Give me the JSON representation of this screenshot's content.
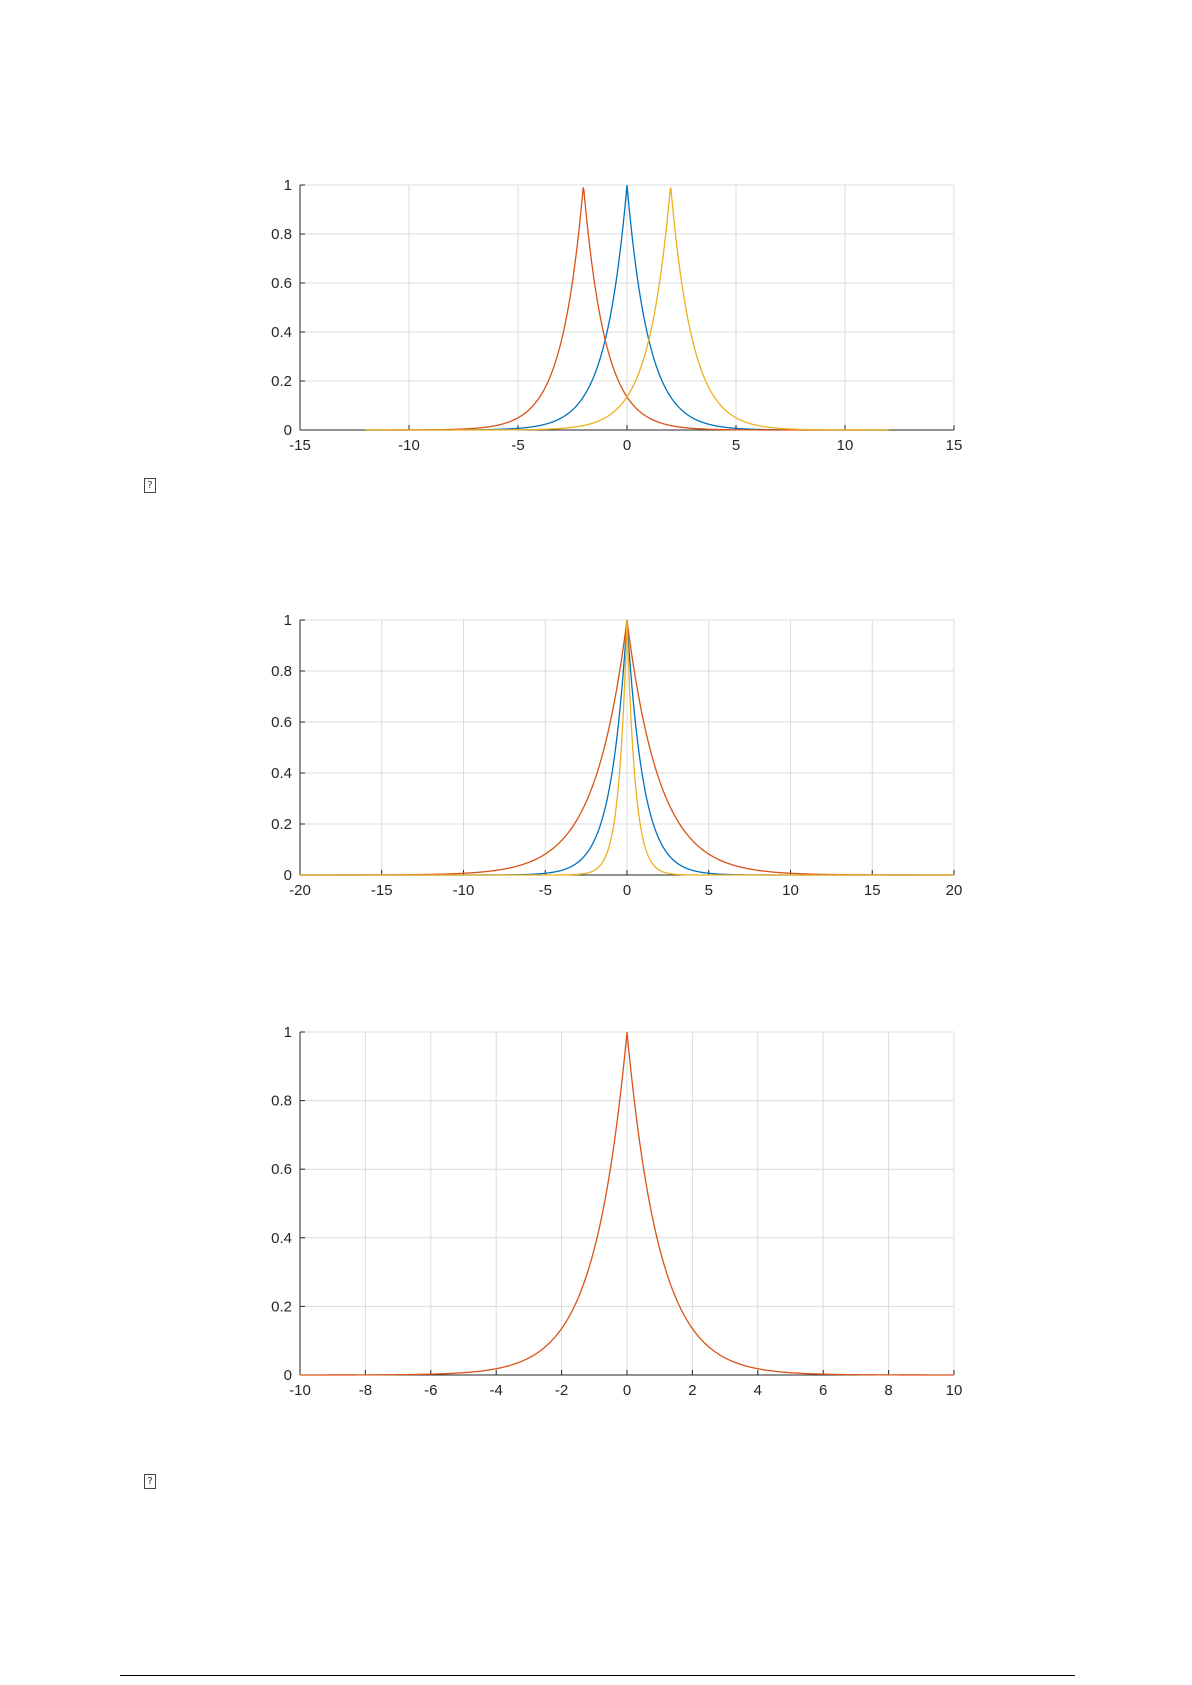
{
  "placeholders": [
    "?",
    "?"
  ],
  "chart_data": [
    {
      "type": "line",
      "xlim": [
        -15,
        15
      ],
      "ylim": [
        0,
        1
      ],
      "xticks": [
        -15,
        -10,
        -5,
        0,
        5,
        10,
        15
      ],
      "yticks": [
        0,
        0.2,
        0.4,
        0.6,
        0.8,
        1
      ],
      "grid": true,
      "x_domain": [
        -12,
        12
      ],
      "series": [
        {
          "color": "#0072bd",
          "center": 0,
          "scale": 1
        },
        {
          "color": "#d95319",
          "center": -2,
          "scale": 1
        },
        {
          "color": "#edb120",
          "center": 2,
          "scale": 1
        }
      ]
    },
    {
      "type": "line",
      "xlim": [
        -20,
        20
      ],
      "ylim": [
        0,
        1
      ],
      "xticks": [
        -20,
        -15,
        -10,
        -5,
        0,
        5,
        10,
        15,
        20
      ],
      "yticks": [
        0,
        0.2,
        0.4,
        0.6,
        0.8,
        1
      ],
      "grid": true,
      "x_domain": [
        -20,
        20
      ],
      "series": [
        {
          "color": "#0072bd",
          "center": 0,
          "scale": 1
        },
        {
          "color": "#d95319",
          "center": 0,
          "scale": 2
        },
        {
          "color": "#edb120",
          "center": 0,
          "scale": 0.5
        }
      ]
    },
    {
      "type": "line",
      "xlim": [
        -10,
        10
      ],
      "ylim": [
        0,
        1
      ],
      "xticks": [
        -10,
        -8,
        -6,
        -4,
        -2,
        0,
        2,
        4,
        6,
        8,
        10
      ],
      "yticks": [
        0,
        0.2,
        0.4,
        0.6,
        0.8,
        1
      ],
      "grid": true,
      "x_domain": [
        -10,
        10
      ],
      "series": [
        {
          "color": "#d95319",
          "center": 0,
          "scale": 1
        }
      ]
    }
  ]
}
